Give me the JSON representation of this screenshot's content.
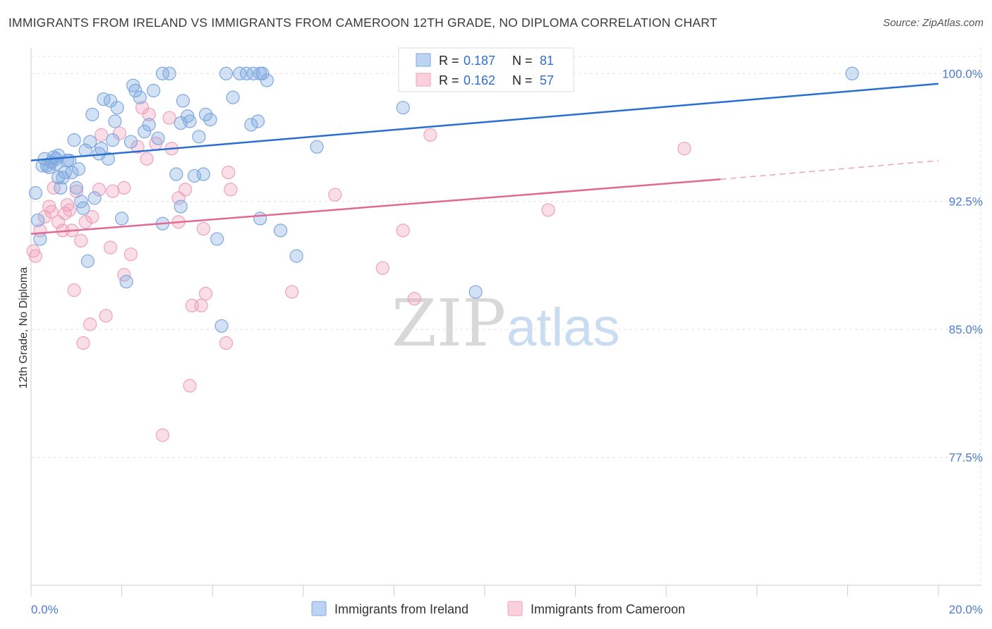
{
  "title": "IMMIGRANTS FROM IRELAND VS IMMIGRANTS FROM CAMEROON 12TH GRADE, NO DIPLOMA CORRELATION CHART",
  "source": "Source: ZipAtlas.com",
  "watermark": {
    "zip": "ZIP",
    "atlas": "atlas"
  },
  "legend": {
    "ireland": {
      "r_label": "R = ",
      "r_value": "0.187",
      "n_label": "N = ",
      "n_value": "81"
    },
    "cameroon": {
      "r_label": "R = ",
      "r_value": "0.162",
      "n_label": "N = ",
      "n_value": "57"
    }
  },
  "bottom_legend": {
    "ireland": "Immigrants from Ireland",
    "cameroon": "Immigrants from Cameroon"
  },
  "colors": {
    "ireland": "#7fa8e0",
    "ireland_line": "#2a6fd0",
    "cameroon": "#f0a0ba",
    "cameroon_line": "#e06a93",
    "tick": "#4a7bd0"
  },
  "chart_data": {
    "type": "scatter",
    "title": "IMMIGRANTS FROM IRELAND VS IMMIGRANTS FROM CAMEROON 12TH GRADE, NO DIPLOMA CORRELATION CHART",
    "xlabel": "",
    "ylabel": "12th Grade, No Diploma",
    "xlim": [
      0,
      20
    ],
    "ylim": [
      70.0,
      101.5
    ],
    "x_tick_labels": [
      "0.0%",
      "20.0%"
    ],
    "y_ticks": [
      77.5,
      85.0,
      92.5,
      100.0
    ],
    "y_tick_labels": [
      "77.5%",
      "85.0%",
      "92.5%",
      "100.0%"
    ],
    "grid": true,
    "legend_position": "top-center",
    "series": [
      {
        "name": "Immigrants from Ireland",
        "trend": {
          "x": [
            0,
            20
          ],
          "y": [
            94.9,
            99.4
          ]
        },
        "points": [
          [
            0.1,
            93.0
          ],
          [
            0.15,
            91.4
          ],
          [
            0.2,
            90.3
          ],
          [
            0.25,
            94.6
          ],
          [
            0.3,
            95.0
          ],
          [
            0.35,
            94.6
          ],
          [
            0.4,
            94.5
          ],
          [
            0.45,
            94.8
          ],
          [
            0.5,
            95.1
          ],
          [
            0.55,
            94.7
          ],
          [
            0.6,
            93.9
          ],
          [
            0.65,
            93.3
          ],
          [
            0.7,
            93.9
          ],
          [
            0.75,
            94.2
          ],
          [
            0.85,
            94.9
          ],
          [
            0.9,
            94.2
          ],
          [
            0.95,
            96.1
          ],
          [
            1.05,
            94.4
          ],
          [
            1.1,
            92.5
          ],
          [
            1.15,
            92.1
          ],
          [
            1.2,
            95.5
          ],
          [
            1.3,
            96.0
          ],
          [
            1.35,
            97.6
          ],
          [
            1.4,
            92.7
          ],
          [
            1.5,
            95.3
          ],
          [
            1.55,
            95.6
          ],
          [
            1.6,
            98.5
          ],
          [
            1.7,
            95.0
          ],
          [
            1.75,
            98.4
          ],
          [
            1.8,
            96.1
          ],
          [
            1.85,
            97.2
          ],
          [
            1.9,
            98.0
          ],
          [
            2.2,
            96.0
          ],
          [
            2.25,
            99.3
          ],
          [
            2.3,
            99.0
          ],
          [
            2.4,
            98.6
          ],
          [
            2.5,
            96.6
          ],
          [
            2.6,
            97.0
          ],
          [
            2.7,
            99.0
          ],
          [
            2.8,
            96.2
          ],
          [
            2.9,
            100.0
          ],
          [
            3.05,
            100.0
          ],
          [
            3.2,
            94.1
          ],
          [
            3.3,
            97.1
          ],
          [
            3.35,
            98.4
          ],
          [
            3.45,
            97.5
          ],
          [
            3.5,
            97.2
          ],
          [
            3.6,
            94.0
          ],
          [
            3.7,
            96.3
          ],
          [
            3.8,
            94.1
          ],
          [
            3.85,
            97.6
          ],
          [
            3.95,
            97.3
          ],
          [
            4.1,
            90.3
          ],
          [
            4.2,
            85.2
          ],
          [
            4.3,
            100.0
          ],
          [
            4.45,
            98.6
          ],
          [
            4.6,
            100.0
          ],
          [
            4.75,
            100.0
          ],
          [
            4.85,
            97.0
          ],
          [
            4.9,
            100.0
          ],
          [
            5.0,
            97.2
          ],
          [
            5.1,
            100.0
          ],
          [
            5.05,
            91.5
          ],
          [
            5.2,
            99.6
          ],
          [
            5.05,
            100.0
          ],
          [
            5.5,
            90.8
          ],
          [
            5.85,
            89.3
          ],
          [
            6.3,
            95.7
          ],
          [
            8.2,
            98.0
          ],
          [
            9.8,
            87.2
          ],
          [
            11.5,
            100.0
          ],
          [
            18.1,
            100.0
          ],
          [
            2.1,
            87.8
          ],
          [
            1.25,
            89.0
          ],
          [
            2.0,
            91.5
          ],
          [
            2.9,
            91.2
          ],
          [
            3.3,
            92.2
          ],
          [
            1.0,
            93.3
          ],
          [
            0.8,
            94.9
          ],
          [
            0.6,
            95.2
          ],
          [
            0.55,
            95.0
          ]
        ]
      },
      {
        "name": "Immigrants from Cameroon",
        "trend": {
          "x": [
            0,
            15.2
          ],
          "y": [
            90.6,
            93.8
          ]
        },
        "trend_dashed": {
          "x": [
            15.2,
            20
          ],
          "y": [
            93.8,
            94.9
          ]
        },
        "points": [
          [
            0.05,
            89.6
          ],
          [
            0.2,
            90.8
          ],
          [
            0.3,
            91.6
          ],
          [
            0.4,
            92.2
          ],
          [
            0.45,
            91.9
          ],
          [
            0.5,
            93.3
          ],
          [
            0.6,
            91.3
          ],
          [
            0.7,
            90.8
          ],
          [
            0.75,
            91.8
          ],
          [
            0.8,
            92.3
          ],
          [
            0.85,
            92.0
          ],
          [
            0.9,
            90.8
          ],
          [
            0.95,
            87.3
          ],
          [
            1.0,
            93.1
          ],
          [
            1.1,
            90.2
          ],
          [
            1.15,
            84.2
          ],
          [
            1.2,
            91.3
          ],
          [
            1.3,
            85.3
          ],
          [
            1.35,
            91.6
          ],
          [
            1.5,
            93.2
          ],
          [
            1.55,
            96.4
          ],
          [
            1.65,
            85.8
          ],
          [
            1.75,
            89.8
          ],
          [
            1.8,
            93.1
          ],
          [
            1.95,
            96.5
          ],
          [
            2.05,
            93.3
          ],
          [
            2.05,
            88.2
          ],
          [
            2.2,
            89.4
          ],
          [
            2.35,
            95.7
          ],
          [
            2.45,
            98.0
          ],
          [
            2.55,
            95.0
          ],
          [
            2.6,
            97.6
          ],
          [
            2.75,
            95.9
          ],
          [
            2.9,
            78.8
          ],
          [
            3.1,
            95.6
          ],
          [
            3.05,
            97.4
          ],
          [
            3.25,
            92.7
          ],
          [
            3.25,
            91.3
          ],
          [
            3.4,
            93.2
          ],
          [
            3.5,
            81.7
          ],
          [
            3.55,
            86.4
          ],
          [
            3.75,
            86.4
          ],
          [
            3.8,
            90.9
          ],
          [
            3.85,
            87.1
          ],
          [
            4.3,
            84.2
          ],
          [
            4.35,
            94.2
          ],
          [
            4.4,
            93.2
          ],
          [
            5.75,
            87.2
          ],
          [
            6.7,
            92.9
          ],
          [
            7.75,
            88.6
          ],
          [
            8.2,
            90.8
          ],
          [
            8.45,
            86.8
          ],
          [
            8.8,
            96.4
          ],
          [
            11.4,
            92.0
          ],
          [
            11.7,
            100.0
          ],
          [
            14.4,
            95.6
          ],
          [
            0.1,
            89.3
          ]
        ]
      }
    ]
  }
}
